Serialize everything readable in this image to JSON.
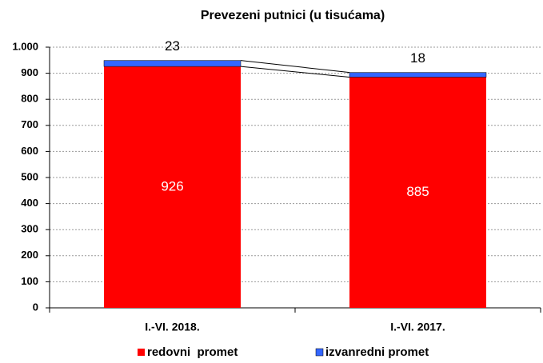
{
  "chart_data": {
    "type": "stacked_bar",
    "title": "Prevezeni putnici (u tisućama)",
    "categories": [
      "I.-VI. 2018.",
      "I.-VI. 2017."
    ],
    "series": [
      {
        "name": "redovni  promet",
        "color": "#ff0000",
        "values": [
          926,
          885
        ]
      },
      {
        "name": "izvanredni promet",
        "color": "#3366ff",
        "values": [
          23,
          18
        ]
      }
    ],
    "ylim": [
      0,
      1000
    ],
    "yticks": [
      0,
      100,
      200,
      300,
      400,
      500,
      600,
      700,
      800,
      900,
      {
        "value": 1000,
        "label": "1.000"
      }
    ],
    "grid": true,
    "legend": "bottom"
  }
}
